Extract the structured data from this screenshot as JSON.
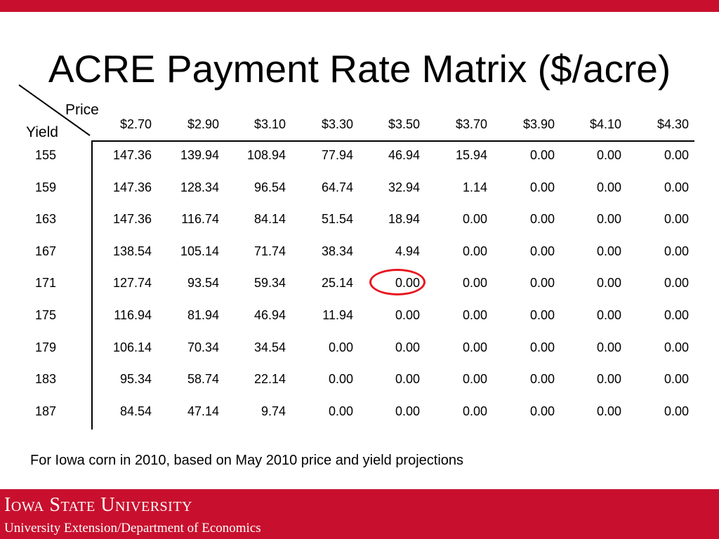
{
  "colors": {
    "brand_red": "#c8102e",
    "highlight_red": "#e8141f"
  },
  "slide": {
    "title": "ACRE Payment Rate Matrix ($/acre)",
    "footnote": "For Iowa corn in 2010, based on May 2010 price and yield projections"
  },
  "table": {
    "corner_column_label": "Price",
    "corner_row_label": "Yield",
    "prices": [
      "$2.70",
      "$2.90",
      "$3.10",
      "$3.30",
      "$3.50",
      "$3.70",
      "$3.90",
      "$4.10",
      "$4.30"
    ],
    "rows": [
      {
        "yield": "155",
        "values": [
          "147.36",
          "139.94",
          "108.94",
          "77.94",
          "46.94",
          "15.94",
          "0.00",
          "0.00",
          "0.00"
        ]
      },
      {
        "yield": "159",
        "values": [
          "147.36",
          "128.34",
          "96.54",
          "64.74",
          "32.94",
          "1.14",
          "0.00",
          "0.00",
          "0.00"
        ]
      },
      {
        "yield": "163",
        "values": [
          "147.36",
          "116.74",
          "84.14",
          "51.54",
          "18.94",
          "0.00",
          "0.00",
          "0.00",
          "0.00"
        ]
      },
      {
        "yield": "167",
        "values": [
          "138.54",
          "105.14",
          "71.74",
          "38.34",
          "4.94",
          "0.00",
          "0.00",
          "0.00",
          "0.00"
        ]
      },
      {
        "yield": "171",
        "values": [
          "127.74",
          "93.54",
          "59.34",
          "25.14",
          "0.00",
          "0.00",
          "0.00",
          "0.00",
          "0.00"
        ]
      },
      {
        "yield": "175",
        "values": [
          "116.94",
          "81.94",
          "46.94",
          "11.94",
          "0.00",
          "0.00",
          "0.00",
          "0.00",
          "0.00"
        ]
      },
      {
        "yield": "179",
        "values": [
          "106.14",
          "70.34",
          "34.54",
          "0.00",
          "0.00",
          "0.00",
          "0.00",
          "0.00",
          "0.00"
        ]
      },
      {
        "yield": "183",
        "values": [
          "95.34",
          "58.74",
          "22.14",
          "0.00",
          "0.00",
          "0.00",
          "0.00",
          "0.00",
          "0.00"
        ]
      },
      {
        "yield": "187",
        "values": [
          "84.54",
          "47.14",
          "9.74",
          "0.00",
          "0.00",
          "0.00",
          "0.00",
          "0.00",
          "0.00"
        ]
      }
    ],
    "highlighted_cell": {
      "yield": "171",
      "price": "$3.50",
      "value": "0.00"
    }
  },
  "footer": {
    "university": "Iowa State University",
    "department": "University Extension/Department of Economics"
  }
}
